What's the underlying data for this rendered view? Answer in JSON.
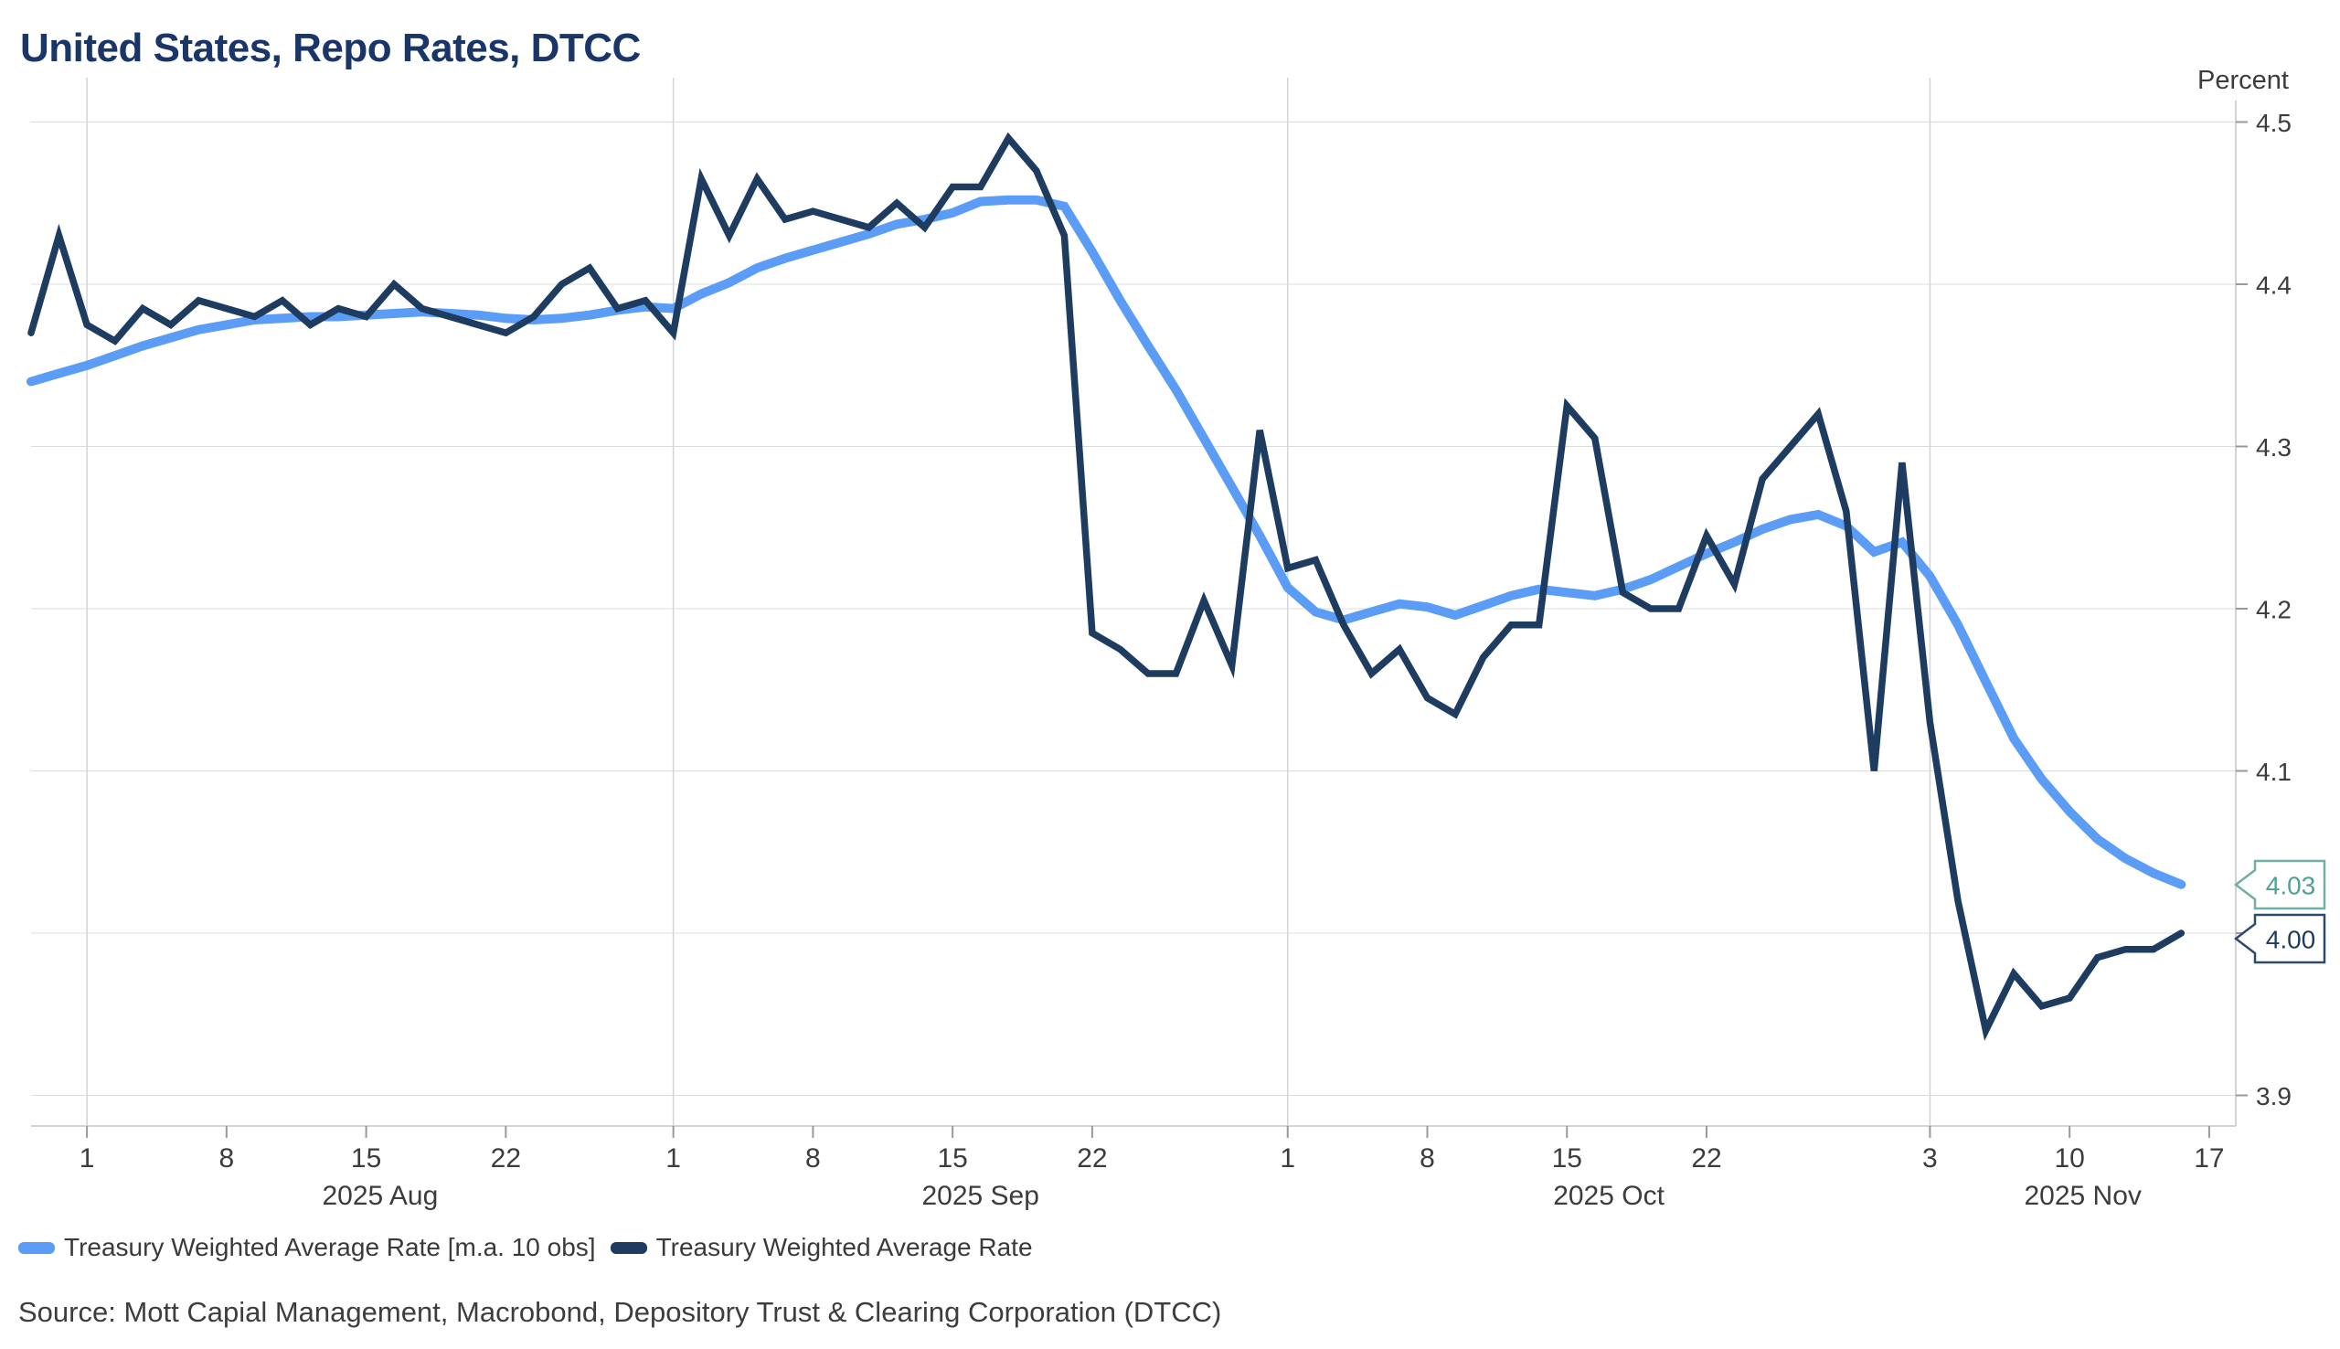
{
  "title": "United States, Repo Rates, DTCC",
  "source": "Source: Mott Capial Management, Macrobond, Depository Trust & Clearing Corporation (DTCC)",
  "colors": {
    "title": "#1a3668",
    "text": "#3c3c3c",
    "grid": "#dcdcdc",
    "month_grid": "#d4d4d4",
    "axis": "#c6c6c6",
    "tick": "#999999",
    "ma_blue": "#5b9cf6",
    "rate_navy": "#1d3c5f",
    "callout_teal": "#4fa193"
  },
  "chart_data": {
    "type": "line",
    "title": "United States, Repo Rates, DTCC",
    "unit_label": "Percent",
    "ylabel": "Percent",
    "ylim": [
      3.9,
      4.5
    ],
    "grid": true,
    "legend_position": "bottom",
    "y_ticks": [
      "4.5",
      "4.4",
      "4.3",
      "4.2",
      "4.1",
      "4.0",
      "3.9"
    ],
    "x_axis": {
      "tick_labels": [
        {
          "label": "1",
          "i": 2
        },
        {
          "label": "8",
          "i": 7
        },
        {
          "label": "15",
          "i": 12
        },
        {
          "label": "22",
          "i": 17
        },
        {
          "label": "1",
          "i": 23
        },
        {
          "label": "8",
          "i": 28
        },
        {
          "label": "15",
          "i": 33
        },
        {
          "label": "22",
          "i": 38
        },
        {
          "label": "1",
          "i": 45
        },
        {
          "label": "8",
          "i": 50
        },
        {
          "label": "15",
          "i": 55
        },
        {
          "label": "22",
          "i": 60
        },
        {
          "label": "3",
          "i": 68
        },
        {
          "label": "10",
          "i": 73
        },
        {
          "label": "17",
          "i": 78
        }
      ],
      "month_gridline_indices": [
        2,
        23,
        45,
        68
      ],
      "month_labels": [
        "2025 Aug",
        "2025 Sep",
        "2025 Oct",
        "2025 Nov"
      ]
    },
    "dates": [
      "Jul 30",
      "Jul 31",
      "Aug 1",
      "Aug 4",
      "Aug 5",
      "Aug 6",
      "Aug 7",
      "Aug 8",
      "Aug 11",
      "Aug 12",
      "Aug 13",
      "Aug 14",
      "Aug 15",
      "Aug 18",
      "Aug 19",
      "Aug 20",
      "Aug 21",
      "Aug 22",
      "Aug 25",
      "Aug 26",
      "Aug 27",
      "Aug 28",
      "Aug 29",
      "Sep 1",
      "Sep 2",
      "Sep 3",
      "Sep 4",
      "Sep 5",
      "Sep 8",
      "Sep 9",
      "Sep 10",
      "Sep 11",
      "Sep 12",
      "Sep 15",
      "Sep 16",
      "Sep 17",
      "Sep 18",
      "Sep 19",
      "Sep 22",
      "Sep 23",
      "Sep 24",
      "Sep 25",
      "Sep 26",
      "Sep 29",
      "Sep 30",
      "Oct 1",
      "Oct 2",
      "Oct 3",
      "Oct 6",
      "Oct 7",
      "Oct 8",
      "Oct 9",
      "Oct 10",
      "Oct 13",
      "Oct 14",
      "Oct 15",
      "Oct 16",
      "Oct 17",
      "Oct 20",
      "Oct 21",
      "Oct 22",
      "Oct 23",
      "Oct 24",
      "Oct 27",
      "Oct 28",
      "Oct 29",
      "Oct 30",
      "Oct 31",
      "Nov 3",
      "Nov 4",
      "Nov 5",
      "Nov 6",
      "Nov 7",
      "Nov 10",
      "Nov 11",
      "Nov 12",
      "Nov 13",
      "Nov 14"
    ],
    "series": [
      {
        "name": "Treasury Weighted Average Rate [m.a. 10 obs]",
        "color": "#5b9cf6",
        "stroke_width": 10,
        "end_label": {
          "text": "4.03",
          "text_color": "#4fa193",
          "border_color": "#6fb0a4"
        },
        "values": [
          4.34,
          4.345,
          4.35,
          4.356,
          4.362,
          4.367,
          4.372,
          4.375,
          4.378,
          4.379,
          4.38,
          4.38,
          4.381,
          4.382,
          4.383,
          4.382,
          4.381,
          4.379,
          4.378,
          4.379,
          4.381,
          4.384,
          4.386,
          4.385,
          4.394,
          4.401,
          4.41,
          4.416,
          4.421,
          4.426,
          4.431,
          4.437,
          4.44,
          4.444,
          4.451,
          4.452,
          4.452,
          4.448,
          4.42,
          4.39,
          4.362,
          4.335,
          4.305,
          4.275,
          4.245,
          4.213,
          4.198,
          4.193,
          4.198,
          4.203,
          4.201,
          4.196,
          4.202,
          4.208,
          4.212,
          4.21,
          4.208,
          4.212,
          4.218,
          4.226,
          4.234,
          4.241,
          4.249,
          4.255,
          4.258,
          4.251,
          4.235,
          4.241,
          4.22,
          4.19,
          4.155,
          4.12,
          4.095,
          4.075,
          4.058,
          4.046,
          4.037,
          4.03
        ]
      },
      {
        "name": "Treasury Weighted Average Rate",
        "color": "#1d3c5f",
        "stroke_width": 7.5,
        "end_label": {
          "text": "4.00",
          "text_color": "#1d3c5f",
          "border_color": "#2d4a6e"
        },
        "values": [
          4.37,
          4.43,
          4.375,
          4.365,
          4.385,
          4.375,
          4.39,
          4.385,
          4.38,
          4.39,
          4.375,
          4.385,
          4.38,
          4.4,
          4.385,
          4.38,
          4.375,
          4.37,
          4.38,
          4.4,
          4.41,
          4.385,
          4.39,
          4.37,
          4.465,
          4.43,
          4.465,
          4.44,
          4.445,
          4.44,
          4.435,
          4.45,
          4.435,
          4.46,
          4.46,
          4.49,
          4.47,
          4.43,
          4.185,
          4.175,
          4.16,
          4.16,
          4.205,
          4.165,
          4.31,
          4.225,
          4.23,
          4.19,
          4.16,
          4.175,
          4.145,
          4.135,
          4.17,
          4.19,
          4.19,
          4.325,
          4.305,
          4.21,
          4.2,
          4.2,
          4.245,
          4.215,
          4.28,
          4.3,
          4.32,
          4.26,
          4.1,
          4.29,
          4.13,
          4.02,
          3.94,
          3.975,
          3.955,
          3.96,
          3.985,
          3.99,
          3.99,
          4.0
        ]
      }
    ]
  }
}
